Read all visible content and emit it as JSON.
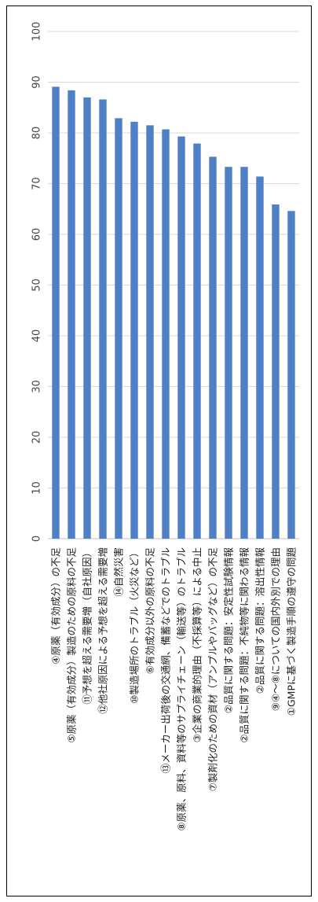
{
  "chart_data": {
    "type": "bar",
    "orientation": "horizontal",
    "rotated": true,
    "categories": [
      "④原薬（有効成分）の不足",
      "⑤原薬（有効成分）製造のための原料の不足",
      "⑪予想を超える需要増（自社原因）",
      "⑫他社原因による予想を超える需要増",
      "⑭自然災害",
      "⑩製造場所のトラブル（火災など）",
      "⑥有効成分以外の原料の不足",
      "⑬メーカー出荷後の交通網、備蓄などでのトラブル",
      "⑧原薬、原料、資料等のサプライチェーン（輸送等）のトラブル",
      "③企業の商業的理由（不採算等）による中止",
      "⑦製剤化のための資材（アンプルやバッグなど）の不足",
      "②品質に関する問題：安定性試験情報",
      "②品質に関する問題：不純物等に関わる情報",
      "②品質に関する問題：溶出性情報",
      "⑨④～⑧についての国内外別での理由",
      "①GMPに基づく製造手順の遵守の問題"
    ],
    "values": [
      89.1,
      88.4,
      87.0,
      86.6,
      82.9,
      82.2,
      81.5,
      80.7,
      79.3,
      77.9,
      75.3,
      73.3,
      73.3,
      71.4,
      65.9,
      64.6
    ],
    "ticks": [
      "0",
      "10",
      "20",
      "30",
      "40",
      "50",
      "60",
      "70",
      "80",
      "90",
      "100"
    ],
    "xlim": [
      0,
      100
    ],
    "grid": true,
    "bar_color": "#4F7FC4",
    "grid_color": "#D9D9D9"
  }
}
